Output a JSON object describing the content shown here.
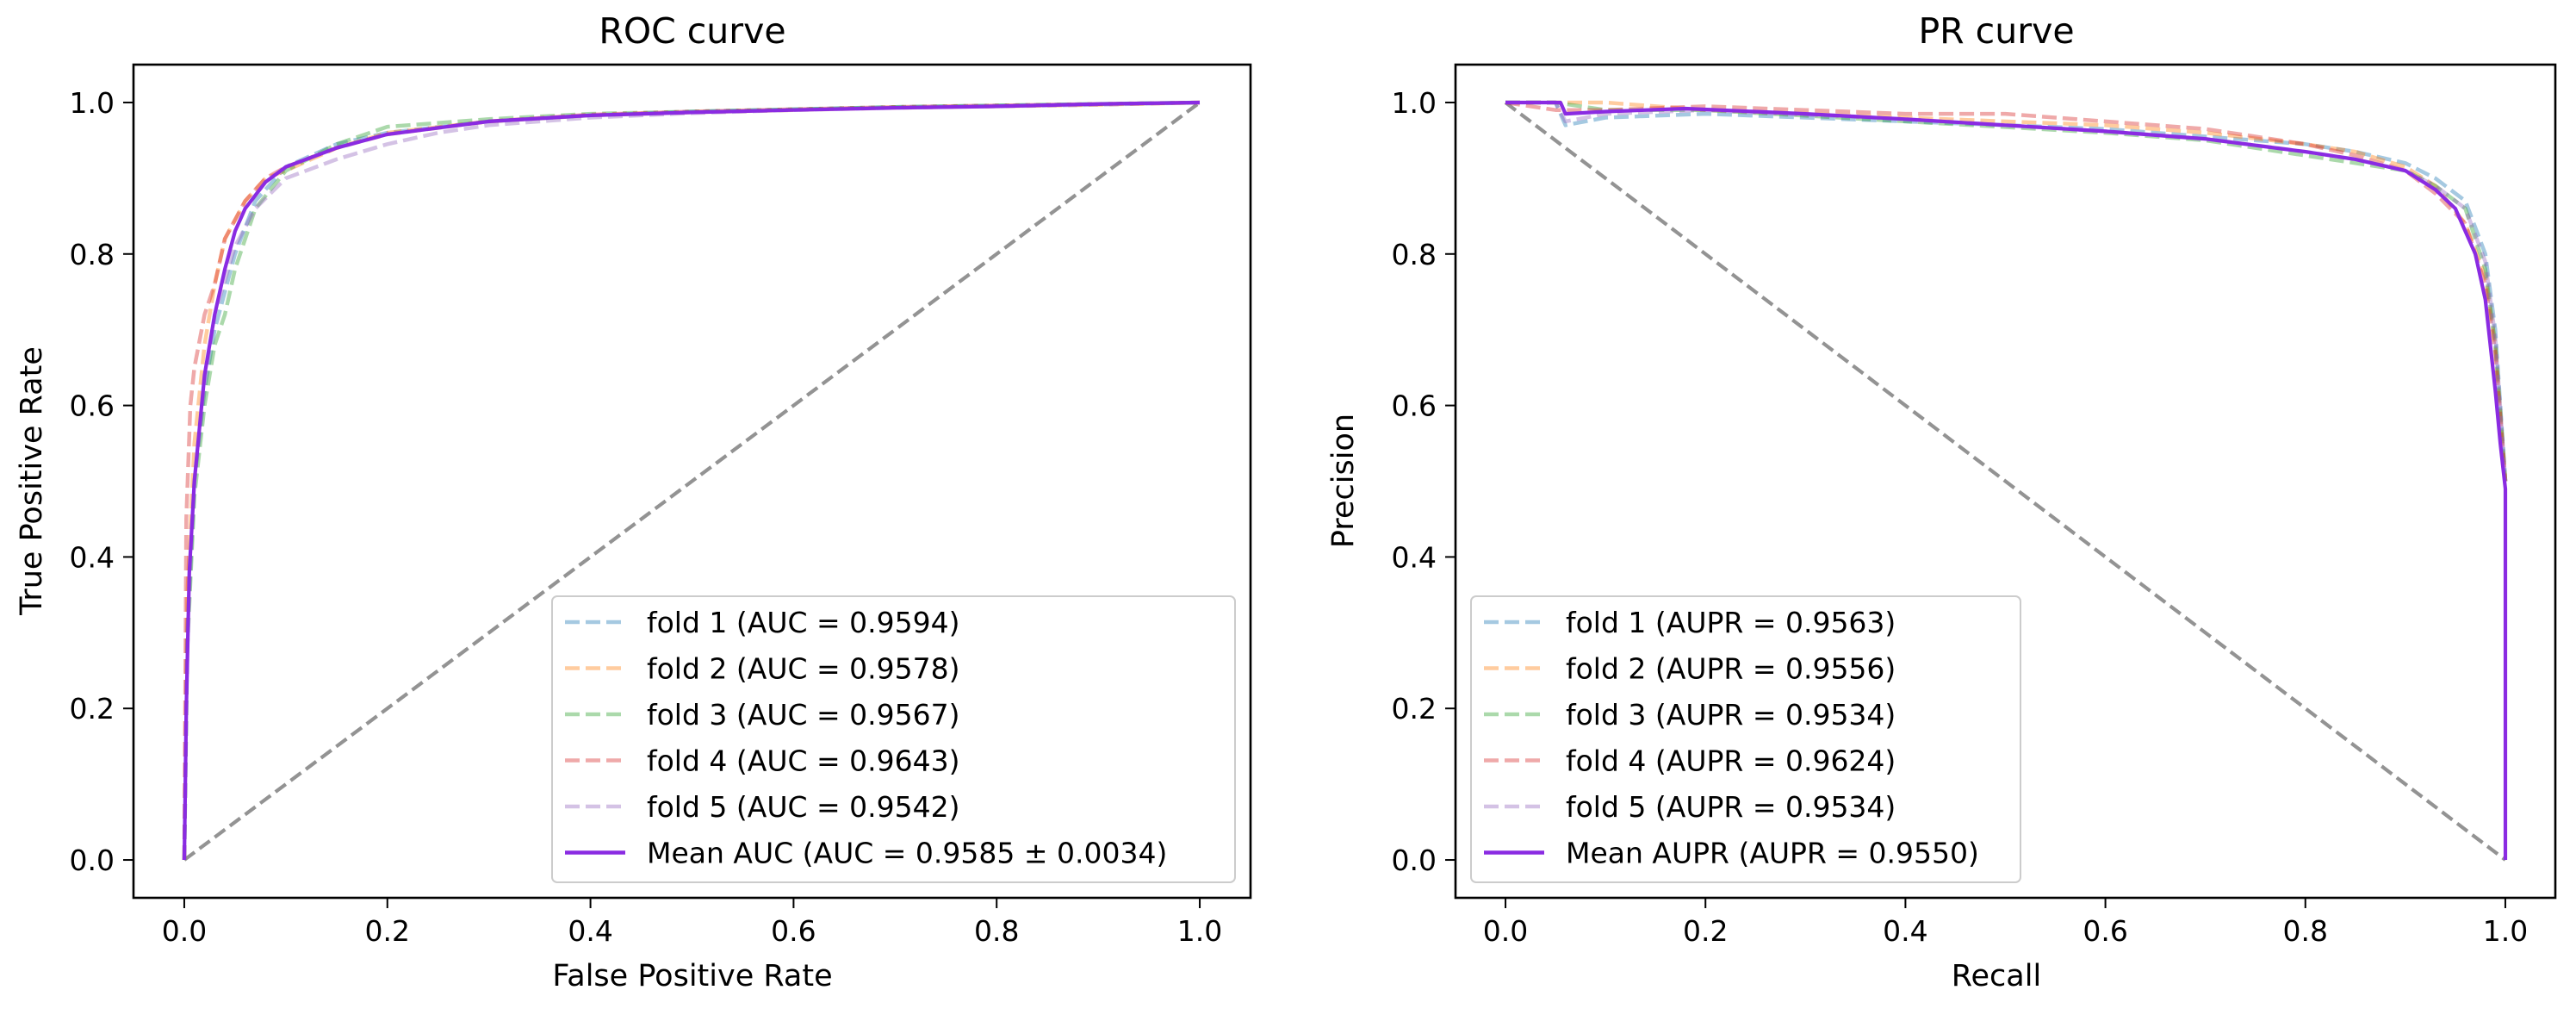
{
  "colors": {
    "fold1": "#1f77b4",
    "fold2": "#ff7f0e",
    "fold3": "#2ca02c",
    "fold4": "#d62728",
    "fold5": "#9467bd",
    "mean": "#8a2be2",
    "chance": "#808080"
  },
  "chart_data": [
    {
      "id": "roc",
      "type": "line",
      "title": "ROC curve",
      "xlabel": "False Positive Rate",
      "ylabel": "True Positive Rate",
      "xlim": [
        -0.05,
        1.05
      ],
      "ylim": [
        -0.05,
        1.05
      ],
      "xticks": [
        0.0,
        0.2,
        0.4,
        0.6,
        0.8,
        1.0
      ],
      "yticks": [
        0.0,
        0.2,
        0.4,
        0.6,
        0.8,
        1.0
      ],
      "xtick_labels": [
        "0.0",
        "0.2",
        "0.4",
        "0.6",
        "0.8",
        "1.0"
      ],
      "ytick_labels": [
        "0.0",
        "0.2",
        "0.4",
        "0.6",
        "0.8",
        "1.0"
      ],
      "legend_position": "lower-right",
      "grid": false,
      "series": [
        {
          "name": "fold 1 (AUC = 0.9594)",
          "color_key": "fold1",
          "style": "dashed",
          "opacity": 0.4,
          "x": [
            0,
            0.003,
            0.01,
            0.02,
            0.03,
            0.05,
            0.07,
            0.1,
            0.15,
            0.2,
            0.3,
            0.4,
            0.5,
            0.6,
            0.7,
            0.8,
            0.9,
            1.0
          ],
          "y": [
            0,
            0.3,
            0.5,
            0.62,
            0.7,
            0.8,
            0.87,
            0.915,
            0.945,
            0.96,
            0.975,
            0.983,
            0.988,
            0.991,
            0.994,
            0.996,
            0.998,
            1.0
          ]
        },
        {
          "name": "fold 2 (AUC = 0.9578)",
          "color_key": "fold2",
          "style": "dashed",
          "opacity": 0.4,
          "x": [
            0,
            0.003,
            0.01,
            0.02,
            0.03,
            0.04,
            0.06,
            0.08,
            0.1,
            0.15,
            0.2,
            0.3,
            0.4,
            0.5,
            0.6,
            0.7,
            0.8,
            0.9,
            1.0
          ],
          "y": [
            0,
            0.35,
            0.55,
            0.68,
            0.76,
            0.82,
            0.87,
            0.9,
            0.91,
            0.94,
            0.96,
            0.975,
            0.983,
            0.987,
            0.99,
            0.993,
            0.995,
            0.997,
            1.0
          ]
        },
        {
          "name": "fold 3 (AUC = 0.9567)",
          "color_key": "fold3",
          "style": "dashed",
          "opacity": 0.4,
          "x": [
            0,
            0.003,
            0.01,
            0.02,
            0.03,
            0.04,
            0.05,
            0.07,
            0.1,
            0.15,
            0.2,
            0.3,
            0.4,
            0.5,
            0.6,
            0.7,
            0.8,
            0.9,
            1.0
          ],
          "y": [
            0,
            0.28,
            0.48,
            0.6,
            0.68,
            0.72,
            0.78,
            0.86,
            0.91,
            0.945,
            0.968,
            0.978,
            0.985,
            0.988,
            0.991,
            0.994,
            0.996,
            0.998,
            1.0
          ]
        },
        {
          "name": "fold 4 (AUC = 0.9643)",
          "color_key": "fold4",
          "style": "dashed",
          "opacity": 0.4,
          "x": [
            0,
            0.002,
            0.006,
            0.01,
            0.02,
            0.03,
            0.04,
            0.06,
            0.08,
            0.1,
            0.15,
            0.2,
            0.3,
            0.4,
            0.5,
            0.6,
            0.7,
            0.8,
            0.9,
            1.0
          ],
          "y": [
            0,
            0.45,
            0.6,
            0.65,
            0.72,
            0.76,
            0.82,
            0.87,
            0.9,
            0.915,
            0.94,
            0.958,
            0.975,
            0.984,
            0.988,
            0.991,
            0.994,
            0.996,
            0.998,
            1.0
          ]
        },
        {
          "name": "fold 5 (AUC = 0.9542)",
          "color_key": "fold5",
          "style": "dashed",
          "opacity": 0.4,
          "x": [
            0,
            0.003,
            0.01,
            0.02,
            0.03,
            0.05,
            0.07,
            0.1,
            0.15,
            0.2,
            0.25,
            0.3,
            0.4,
            0.5,
            0.6,
            0.7,
            0.8,
            0.9,
            1.0
          ],
          "y": [
            0,
            0.3,
            0.5,
            0.63,
            0.72,
            0.81,
            0.86,
            0.9,
            0.925,
            0.945,
            0.96,
            0.97,
            0.98,
            0.986,
            0.99,
            0.993,
            0.995,
            0.997,
            1.0
          ]
        },
        {
          "name": "Mean AUC (AUC = 0.9585 ± 0.0034)",
          "color_key": "mean",
          "style": "solid",
          "opacity": 1.0,
          "x": [
            0,
            0.002,
            0.005,
            0.01,
            0.02,
            0.03,
            0.04,
            0.05,
            0.06,
            0.08,
            0.1,
            0.15,
            0.2,
            0.3,
            0.4,
            0.5,
            0.6,
            0.7,
            0.8,
            0.9,
            1.0
          ],
          "y": [
            0,
            0.2,
            0.38,
            0.5,
            0.64,
            0.72,
            0.78,
            0.83,
            0.86,
            0.895,
            0.915,
            0.94,
            0.958,
            0.975,
            0.983,
            0.987,
            0.99,
            0.993,
            0.995,
            0.998,
            1.0
          ]
        },
        {
          "name": "chance",
          "color_key": "chance",
          "style": "dashed",
          "opacity": 0.85,
          "in_legend": false,
          "x": [
            0,
            1
          ],
          "y": [
            0,
            1
          ]
        }
      ]
    },
    {
      "id": "pr",
      "type": "line",
      "title": "PR curve",
      "xlabel": "Recall",
      "ylabel": "Precision",
      "xlim": [
        -0.05,
        1.05
      ],
      "ylim": [
        -0.05,
        1.05
      ],
      "xticks": [
        0.0,
        0.2,
        0.4,
        0.6,
        0.8,
        1.0
      ],
      "yticks": [
        0.0,
        0.2,
        0.4,
        0.6,
        0.8,
        1.0
      ],
      "xtick_labels": [
        "0.0",
        "0.2",
        "0.4",
        "0.6",
        "0.8",
        "1.0"
      ],
      "ytick_labels": [
        "0.0",
        "0.2",
        "0.4",
        "0.6",
        "0.8",
        "1.0"
      ],
      "legend_position": "lower-left",
      "grid": false,
      "series": [
        {
          "name": "fold 1 (AUPR = 0.9563)",
          "color_key": "fold1",
          "style": "dashed",
          "opacity": 0.4,
          "x": [
            0,
            0.05,
            0.06,
            0.1,
            0.2,
            0.4,
            0.6,
            0.7,
            0.8,
            0.85,
            0.9,
            0.93,
            0.96,
            0.98,
            0.99,
            1.0
          ],
          "y": [
            1.0,
            1.0,
            0.97,
            0.98,
            0.985,
            0.975,
            0.965,
            0.955,
            0.945,
            0.935,
            0.92,
            0.9,
            0.87,
            0.8,
            0.7,
            0.5
          ]
        },
        {
          "name": "fold 2 (AUPR = 0.9556)",
          "color_key": "fold2",
          "style": "dashed",
          "opacity": 0.4,
          "x": [
            0,
            0.1,
            0.2,
            0.4,
            0.6,
            0.7,
            0.8,
            0.85,
            0.9,
            0.93,
            0.96,
            0.98,
            0.99,
            1.0
          ],
          "y": [
            1.0,
            1.0,
            0.99,
            0.98,
            0.97,
            0.96,
            0.945,
            0.935,
            0.915,
            0.89,
            0.84,
            0.77,
            0.68,
            0.5
          ]
        },
        {
          "name": "fold 3 (AUPR = 0.9534)",
          "color_key": "fold3",
          "style": "dashed",
          "opacity": 0.4,
          "x": [
            0,
            0.05,
            0.1,
            0.2,
            0.4,
            0.6,
            0.7,
            0.8,
            0.85,
            0.9,
            0.93,
            0.96,
            0.98,
            0.99,
            1.0
          ],
          "y": [
            1.0,
            1.0,
            0.99,
            0.99,
            0.975,
            0.96,
            0.95,
            0.93,
            0.92,
            0.91,
            0.89,
            0.86,
            0.78,
            0.68,
            0.5
          ]
        },
        {
          "name": "fold 4 (AUPR = 0.9624)",
          "color_key": "fold4",
          "style": "dashed",
          "opacity": 0.4,
          "x": [
            0,
            0.05,
            0.1,
            0.2,
            0.3,
            0.4,
            0.5,
            0.6,
            0.7,
            0.8,
            0.85,
            0.9,
            0.93,
            0.96,
            0.98,
            0.99,
            1.0
          ],
          "y": [
            1.0,
            0.99,
            0.99,
            0.995,
            0.99,
            0.985,
            0.985,
            0.975,
            0.965,
            0.945,
            0.93,
            0.91,
            0.88,
            0.84,
            0.76,
            0.67,
            0.5
          ]
        },
        {
          "name": "fold 5 (AUPR = 0.9534)",
          "color_key": "fold5",
          "style": "dashed",
          "opacity": 0.4,
          "x": [
            0,
            0.05,
            0.06,
            0.1,
            0.2,
            0.4,
            0.6,
            0.7,
            0.8,
            0.85,
            0.9,
            0.93,
            0.96,
            0.98,
            0.99,
            1.0
          ],
          "y": [
            1.0,
            1.0,
            0.975,
            0.985,
            0.99,
            0.978,
            0.962,
            0.952,
            0.935,
            0.925,
            0.91,
            0.89,
            0.86,
            0.79,
            0.69,
            0.5
          ]
        },
        {
          "name": "Mean AUPR (AUPR = 0.9550)",
          "color_key": "mean",
          "style": "solid",
          "opacity": 1.0,
          "x": [
            0,
            0.055,
            0.06,
            0.1,
            0.18,
            0.3,
            0.4,
            0.5,
            0.6,
            0.7,
            0.8,
            0.85,
            0.9,
            0.93,
            0.95,
            0.97,
            0.98,
            0.99,
            0.995,
            1.0,
            1.0
          ],
          "y": [
            1.0,
            1.0,
            0.985,
            0.988,
            0.992,
            0.985,
            0.978,
            0.97,
            0.962,
            0.952,
            0.935,
            0.925,
            0.91,
            0.885,
            0.86,
            0.8,
            0.74,
            0.62,
            0.55,
            0.49,
            0.0
          ]
        },
        {
          "name": "chance",
          "color_key": "chance",
          "style": "dashed",
          "opacity": 0.85,
          "in_legend": false,
          "x": [
            0,
            1
          ],
          "y": [
            1,
            0
          ]
        }
      ]
    }
  ]
}
